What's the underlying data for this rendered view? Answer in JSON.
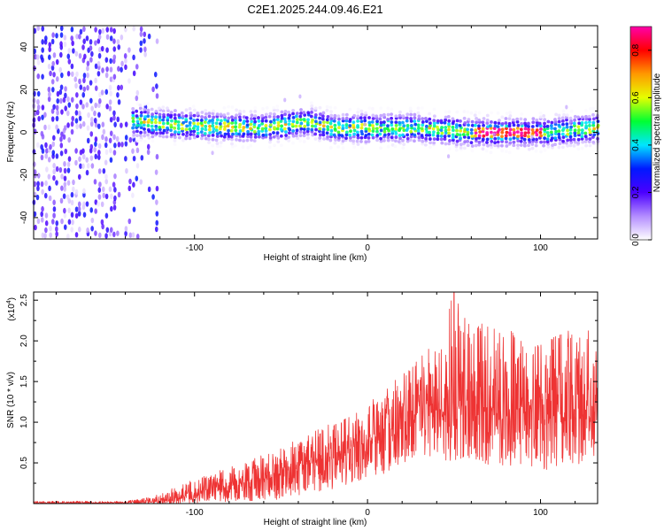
{
  "figure": {
    "title": "C2E1.2025.244.09.46.E21"
  },
  "chart_data": [
    {
      "type": "heatmap",
      "title": "C2E1.2025.244.09.46.E21",
      "xlabel": "Height of straight line (km)",
      "ylabel": "Frequency (Hz)",
      "xlim": [
        -193,
        133
      ],
      "ylim": [
        -50,
        50
      ],
      "x_ticks": [
        -100,
        0,
        100
      ],
      "x_tick_labels": [
        "-100",
        "0",
        "100"
      ],
      "y_ticks": [
        -40,
        -20,
        0,
        20,
        40
      ],
      "y_tick_labels": [
        "-40",
        "-20",
        "0",
        "20",
        "40"
      ],
      "colorbar": {
        "label": "Normalized spectral amplitude",
        "range": [
          0.0,
          0.9
        ],
        "ticks": [
          0.0,
          0.2,
          0.4,
          0.6,
          0.8
        ],
        "tick_labels": [
          "0.0",
          "0.2",
          "0.4",
          "0.6",
          "0.8"
        ],
        "colormap": [
          "#ffffff",
          "#b38cff",
          "#4b00ff",
          "#0019ff",
          "#00e6ff",
          "#00ff33",
          "#e6ff00",
          "#ff9900",
          "#ff0000",
          "#ff00aa"
        ]
      },
      "features": {
        "noise_region_x": [
          -193,
          -130
        ],
        "signal_band_start_x": -137,
        "signal_band_center_hz": [
          {
            "x": -135,
            "hz": 5
          },
          {
            "x": -100,
            "hz": 3
          },
          {
            "x": -60,
            "hz": 2
          },
          {
            "x": -35,
            "hz": 5
          },
          {
            "x": -20,
            "hz": 2
          },
          {
            "x": 0,
            "hz": 2
          },
          {
            "x": 30,
            "hz": 2
          },
          {
            "x": 60,
            "hz": 0
          },
          {
            "x": 100,
            "hz": 0
          },
          {
            "x": 133,
            "hz": 2
          }
        ],
        "peak_amplitude_region_x": [
          62,
          100
        ]
      }
    },
    {
      "type": "line",
      "xlabel": "Height of straight line (km)",
      "ylabel": "SNR (10 * v/v)",
      "y_scale_label": "(x10",
      "y_scale_exponent": "4",
      "xlim": [
        -193,
        133
      ],
      "ylim": [
        0,
        2.6
      ],
      "x_ticks": [
        -100,
        0,
        100
      ],
      "x_tick_labels": [
        "-100",
        "0",
        "100"
      ],
      "y_ticks": [
        0.5,
        1.0,
        1.5,
        2.0,
        2.5
      ],
      "y_tick_labels": [
        "0.5",
        "1.0",
        "1.5",
        "2.0",
        "2.5"
      ],
      "color": "#ee3333",
      "series": [
        {
          "name": "SNR",
          "envelope_min": [
            {
              "x": -193,
              "y": 0.0
            },
            {
              "x": -100,
              "y": 0.0
            },
            {
              "x": -50,
              "y": 0.05
            },
            {
              "x": 0,
              "y": 0.25
            },
            {
              "x": 30,
              "y": 0.5
            },
            {
              "x": 60,
              "y": 0.5
            },
            {
              "x": 100,
              "y": 0.4
            },
            {
              "x": 133,
              "y": 0.5
            }
          ],
          "envelope_center": [
            {
              "x": -193,
              "y": 0.01
            },
            {
              "x": -140,
              "y": 0.01
            },
            {
              "x": -120,
              "y": 0.03
            },
            {
              "x": -100,
              "y": 0.1
            },
            {
              "x": -80,
              "y": 0.2
            },
            {
              "x": -60,
              "y": 0.3
            },
            {
              "x": -40,
              "y": 0.45
            },
            {
              "x": -20,
              "y": 0.6
            },
            {
              "x": 0,
              "y": 0.75
            },
            {
              "x": 20,
              "y": 0.95
            },
            {
              "x": 40,
              "y": 1.15
            },
            {
              "x": 60,
              "y": 1.2
            },
            {
              "x": 80,
              "y": 1.15
            },
            {
              "x": 100,
              "y": 1.1
            },
            {
              "x": 120,
              "y": 1.15
            },
            {
              "x": 133,
              "y": 1.1
            }
          ],
          "envelope_max": [
            {
              "x": -193,
              "y": 0.03
            },
            {
              "x": -140,
              "y": 0.03
            },
            {
              "x": -125,
              "y": 0.08
            },
            {
              "x": -100,
              "y": 0.3
            },
            {
              "x": -80,
              "y": 0.45
            },
            {
              "x": -60,
              "y": 0.6
            },
            {
              "x": -40,
              "y": 0.8
            },
            {
              "x": -20,
              "y": 1.0
            },
            {
              "x": 0,
              "y": 1.25
            },
            {
              "x": 20,
              "y": 1.6
            },
            {
              "x": 40,
              "y": 2.0
            },
            {
              "x": 50,
              "y": 2.6
            },
            {
              "x": 60,
              "y": 2.3
            },
            {
              "x": 80,
              "y": 2.2
            },
            {
              "x": 100,
              "y": 2.0
            },
            {
              "x": 120,
              "y": 2.2
            },
            {
              "x": 133,
              "y": 2.1
            }
          ],
          "peak": {
            "x": 50,
            "y": 2.6
          }
        }
      ]
    }
  ]
}
